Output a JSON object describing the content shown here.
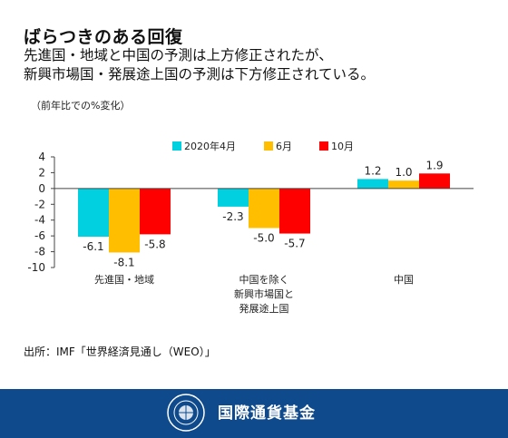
{
  "title": "ばらつきのある回復",
  "subtitle_lines": [
    "先進国・地域と中国の予測は上方修正されたが、",
    "新興市場国・発展途上国の予測は下方修正されている。"
  ],
  "source": "出所：IMF「世界経済見通し（WEO）」",
  "footer": {
    "org_name": "国際通貨基金"
  },
  "chart_data": {
    "type": "bar",
    "ylabel": "（前年比での%変化）",
    "ylim": [
      -10,
      4
    ],
    "yticks": [
      4,
      2,
      0,
      -2,
      -4,
      -6,
      -8,
      -10
    ],
    "categories": [
      [
        "先進国・地域"
      ],
      [
        "中国を除く",
        "新興市場国と",
        "発展途上国"
      ],
      [
        "中国"
      ]
    ],
    "series": [
      {
        "name": "2020年4月",
        "color": "#00d0e0",
        "values": [
          -6.1,
          -2.3,
          1.2
        ],
        "labels": [
          "-6.1",
          "-2.3",
          "1.2"
        ]
      },
      {
        "name": "6月",
        "color": "#ffbf00",
        "values": [
          -8.1,
          -5.0,
          1.0
        ],
        "labels": [
          "-8.1",
          "-5.0",
          "1.0"
        ]
      },
      {
        "name": "10月",
        "color": "#ff0000",
        "values": [
          -5.8,
          -5.7,
          1.9
        ],
        "labels": [
          "-5.8",
          "-5.7",
          "1.9"
        ]
      }
    ],
    "legend_position": "top-center",
    "grid": false
  }
}
